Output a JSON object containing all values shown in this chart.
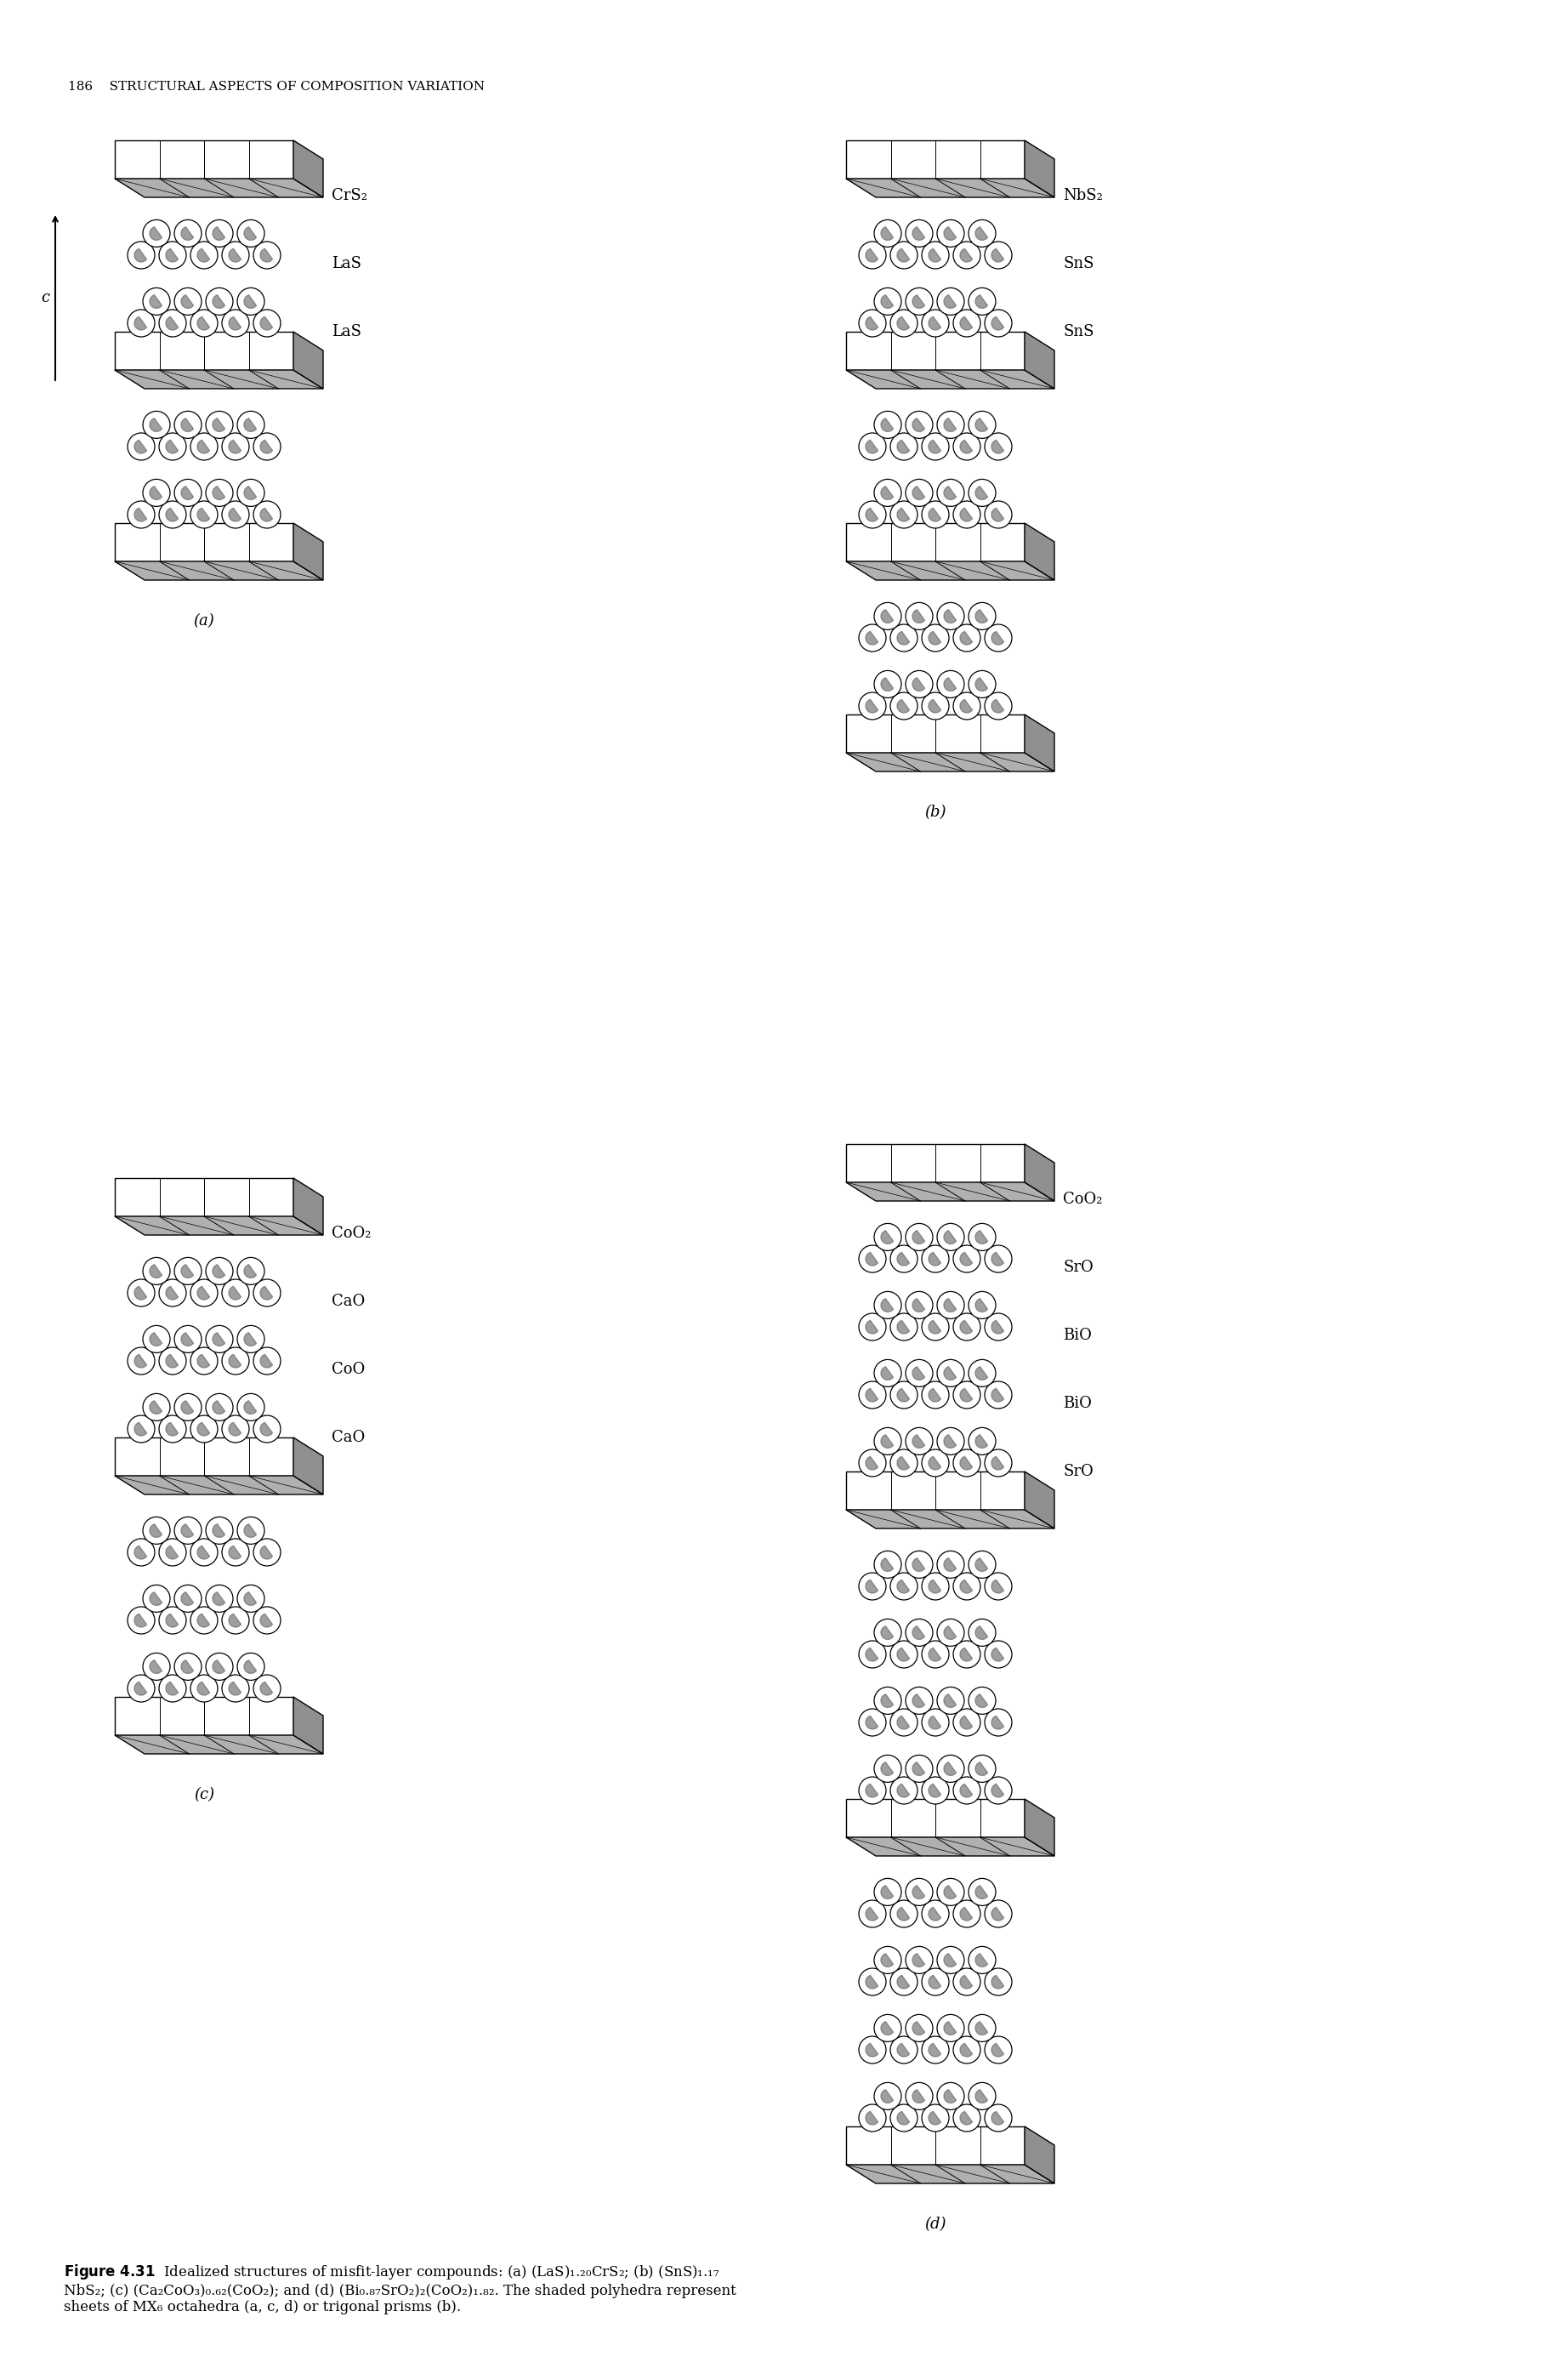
{
  "bg_color": "#ffffff",
  "text_color": "#000000",
  "page_header": "186    STRUCTURAL ASPECTS OF COMPOSITION VARIATION",
  "caption": "Figure 4.31   Idealized structures of misfit-layer compounds: (a) (LaS)₁.₂₀CrS₂; (b) (SnS)₁.₁₇\nNbS₂; (c) (Ca₂CoO₃)₀.₆₂(CoO₂); and (d) (Bi₀.₈₇SrO₂)₂(CoO₂)₁.₈₂. The shaded polyhedra represent\nsheets of MX₆ octahedra (a, c, d) or trigonal prisms (b).",
  "panel_a_labels": [
    "CrS₂",
    "LaS",
    "LaS"
  ],
  "panel_b_labels": [
    "NbS₂",
    "SnS",
    "SnS"
  ],
  "panel_c_labels": [
    "CoO₂",
    "CaO",
    "CoO",
    "CaO"
  ],
  "panel_d_labels": [
    "CoO₂",
    "SrO",
    "BiO",
    "BiO",
    "SrO"
  ],
  "c_axis_label": "c"
}
